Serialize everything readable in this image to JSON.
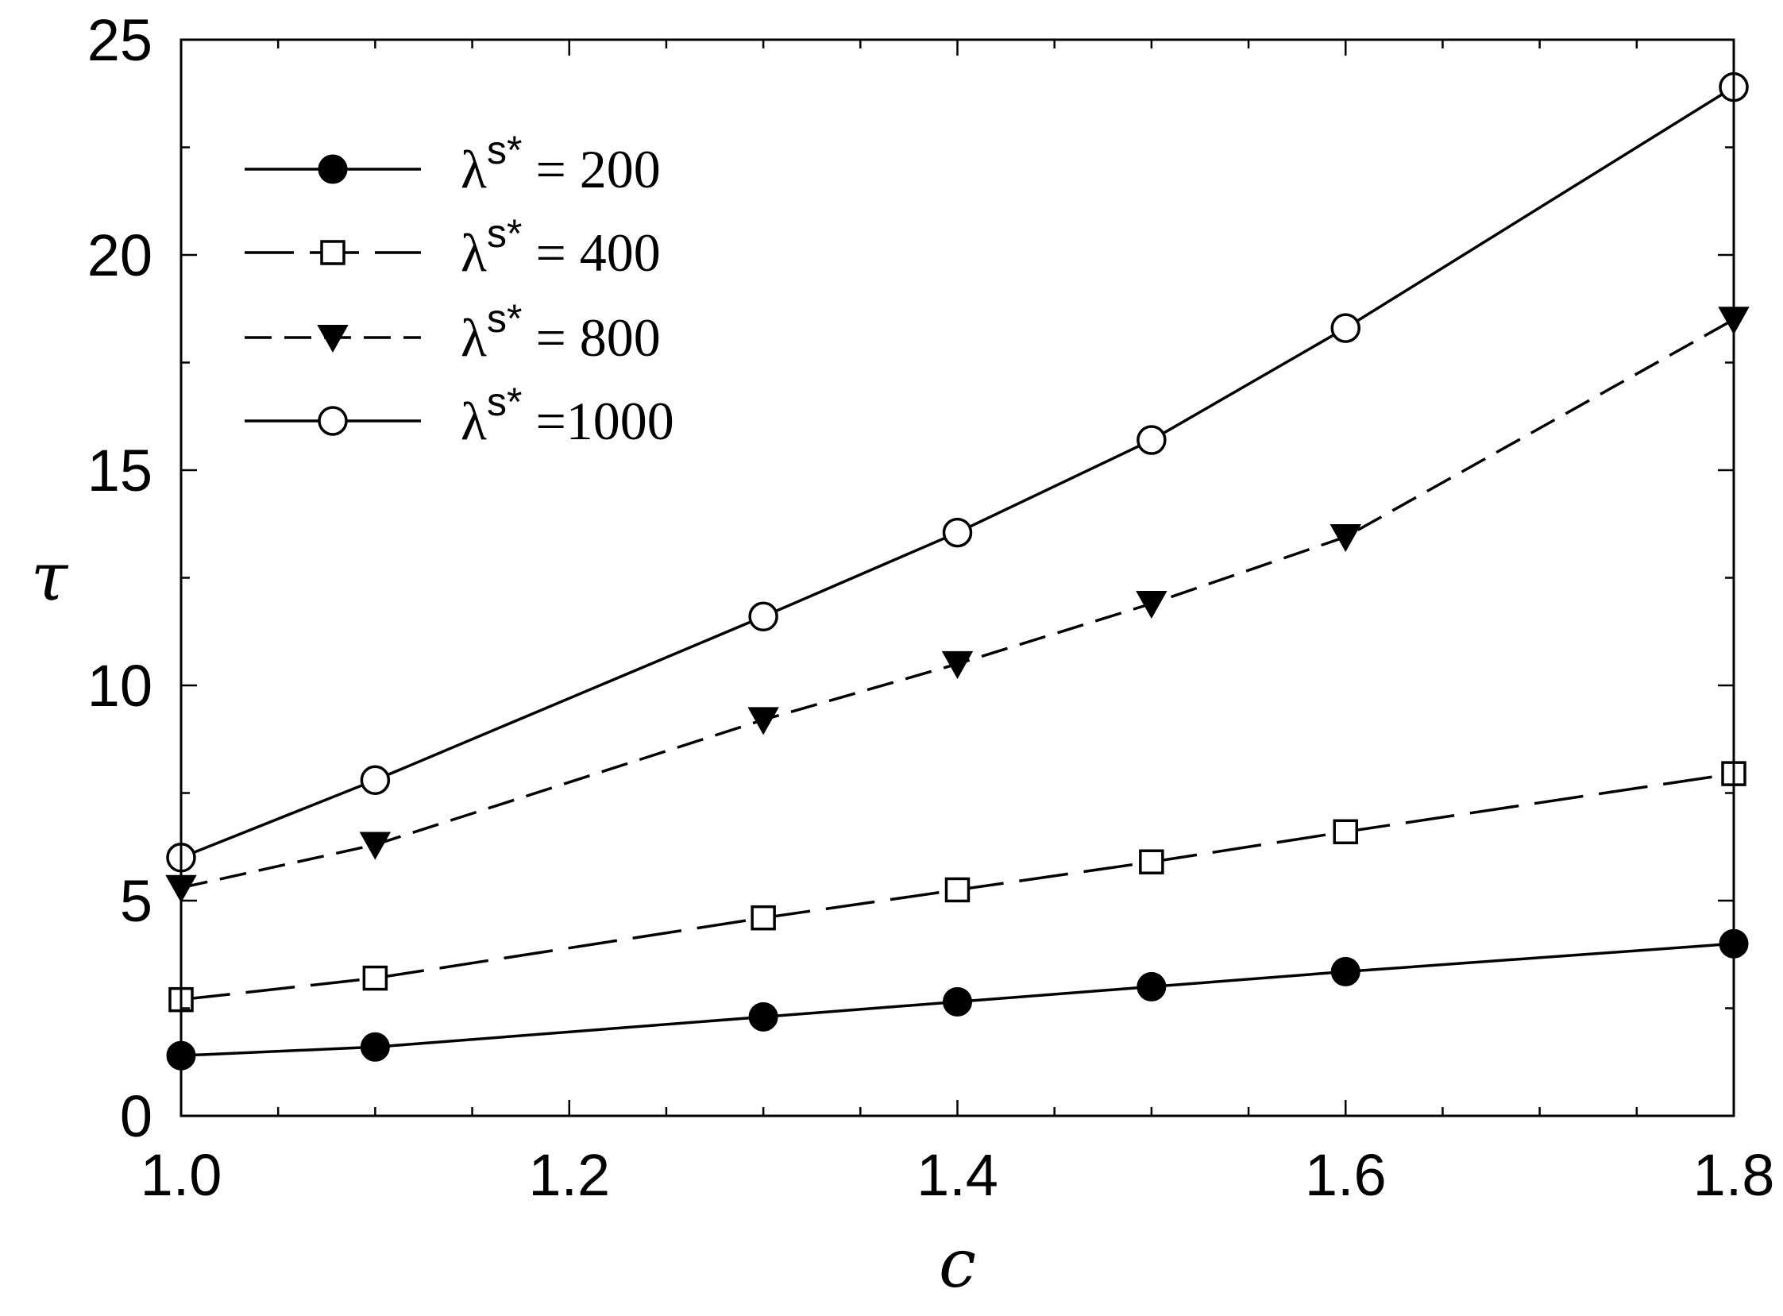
{
  "chart_data": {
    "type": "line",
    "xlabel": "c",
    "ylabel": "τ",
    "xlim": [
      1.0,
      1.8
    ],
    "ylim": [
      0,
      25
    ],
    "x_ticks": [
      "1.0",
      "1.2",
      "1.4",
      "1.6",
      "1.8"
    ],
    "x_tick_values": [
      1.0,
      1.2,
      1.4,
      1.6,
      1.8
    ],
    "y_ticks": [
      "0",
      "5",
      "10",
      "15",
      "20",
      "25"
    ],
    "y_tick_values": [
      0,
      5,
      10,
      15,
      20,
      25
    ],
    "grid": false,
    "legend_position": "top-left",
    "x": [
      1.0,
      1.1,
      1.3,
      1.4,
      1.5,
      1.6,
      1.8
    ],
    "series": [
      {
        "legend_symbol": "λ",
        "legend_superscript": "s*",
        "legend_rest": " = 200",
        "marker": "filled-circle",
        "line_style": "solid",
        "values": [
          1.4,
          1.6,
          2.3,
          2.65,
          3.0,
          3.35,
          4.0
        ]
      },
      {
        "legend_symbol": "λ",
        "legend_superscript": "s*",
        "legend_rest": " = 400",
        "marker": "open-square",
        "line_style": "long-dash",
        "values": [
          2.7,
          3.2,
          4.6,
          5.25,
          5.9,
          6.6,
          7.95
        ]
      },
      {
        "legend_symbol": "λ",
        "legend_superscript": "s*",
        "legend_rest": " = 800",
        "marker": "filled-triangle-down",
        "line_style": "dash",
        "values": [
          5.3,
          6.3,
          9.2,
          10.5,
          11.9,
          13.45,
          18.5
        ]
      },
      {
        "legend_symbol": "λ",
        "legend_superscript": "s*",
        "legend_rest": " =1000",
        "marker": "open-circle",
        "line_style": "solid",
        "values": [
          6.0,
          7.8,
          11.6,
          13.55,
          15.7,
          18.3,
          23.9
        ]
      }
    ],
    "colors": {
      "ink": "#000000",
      "background": "#ffffff"
    }
  }
}
